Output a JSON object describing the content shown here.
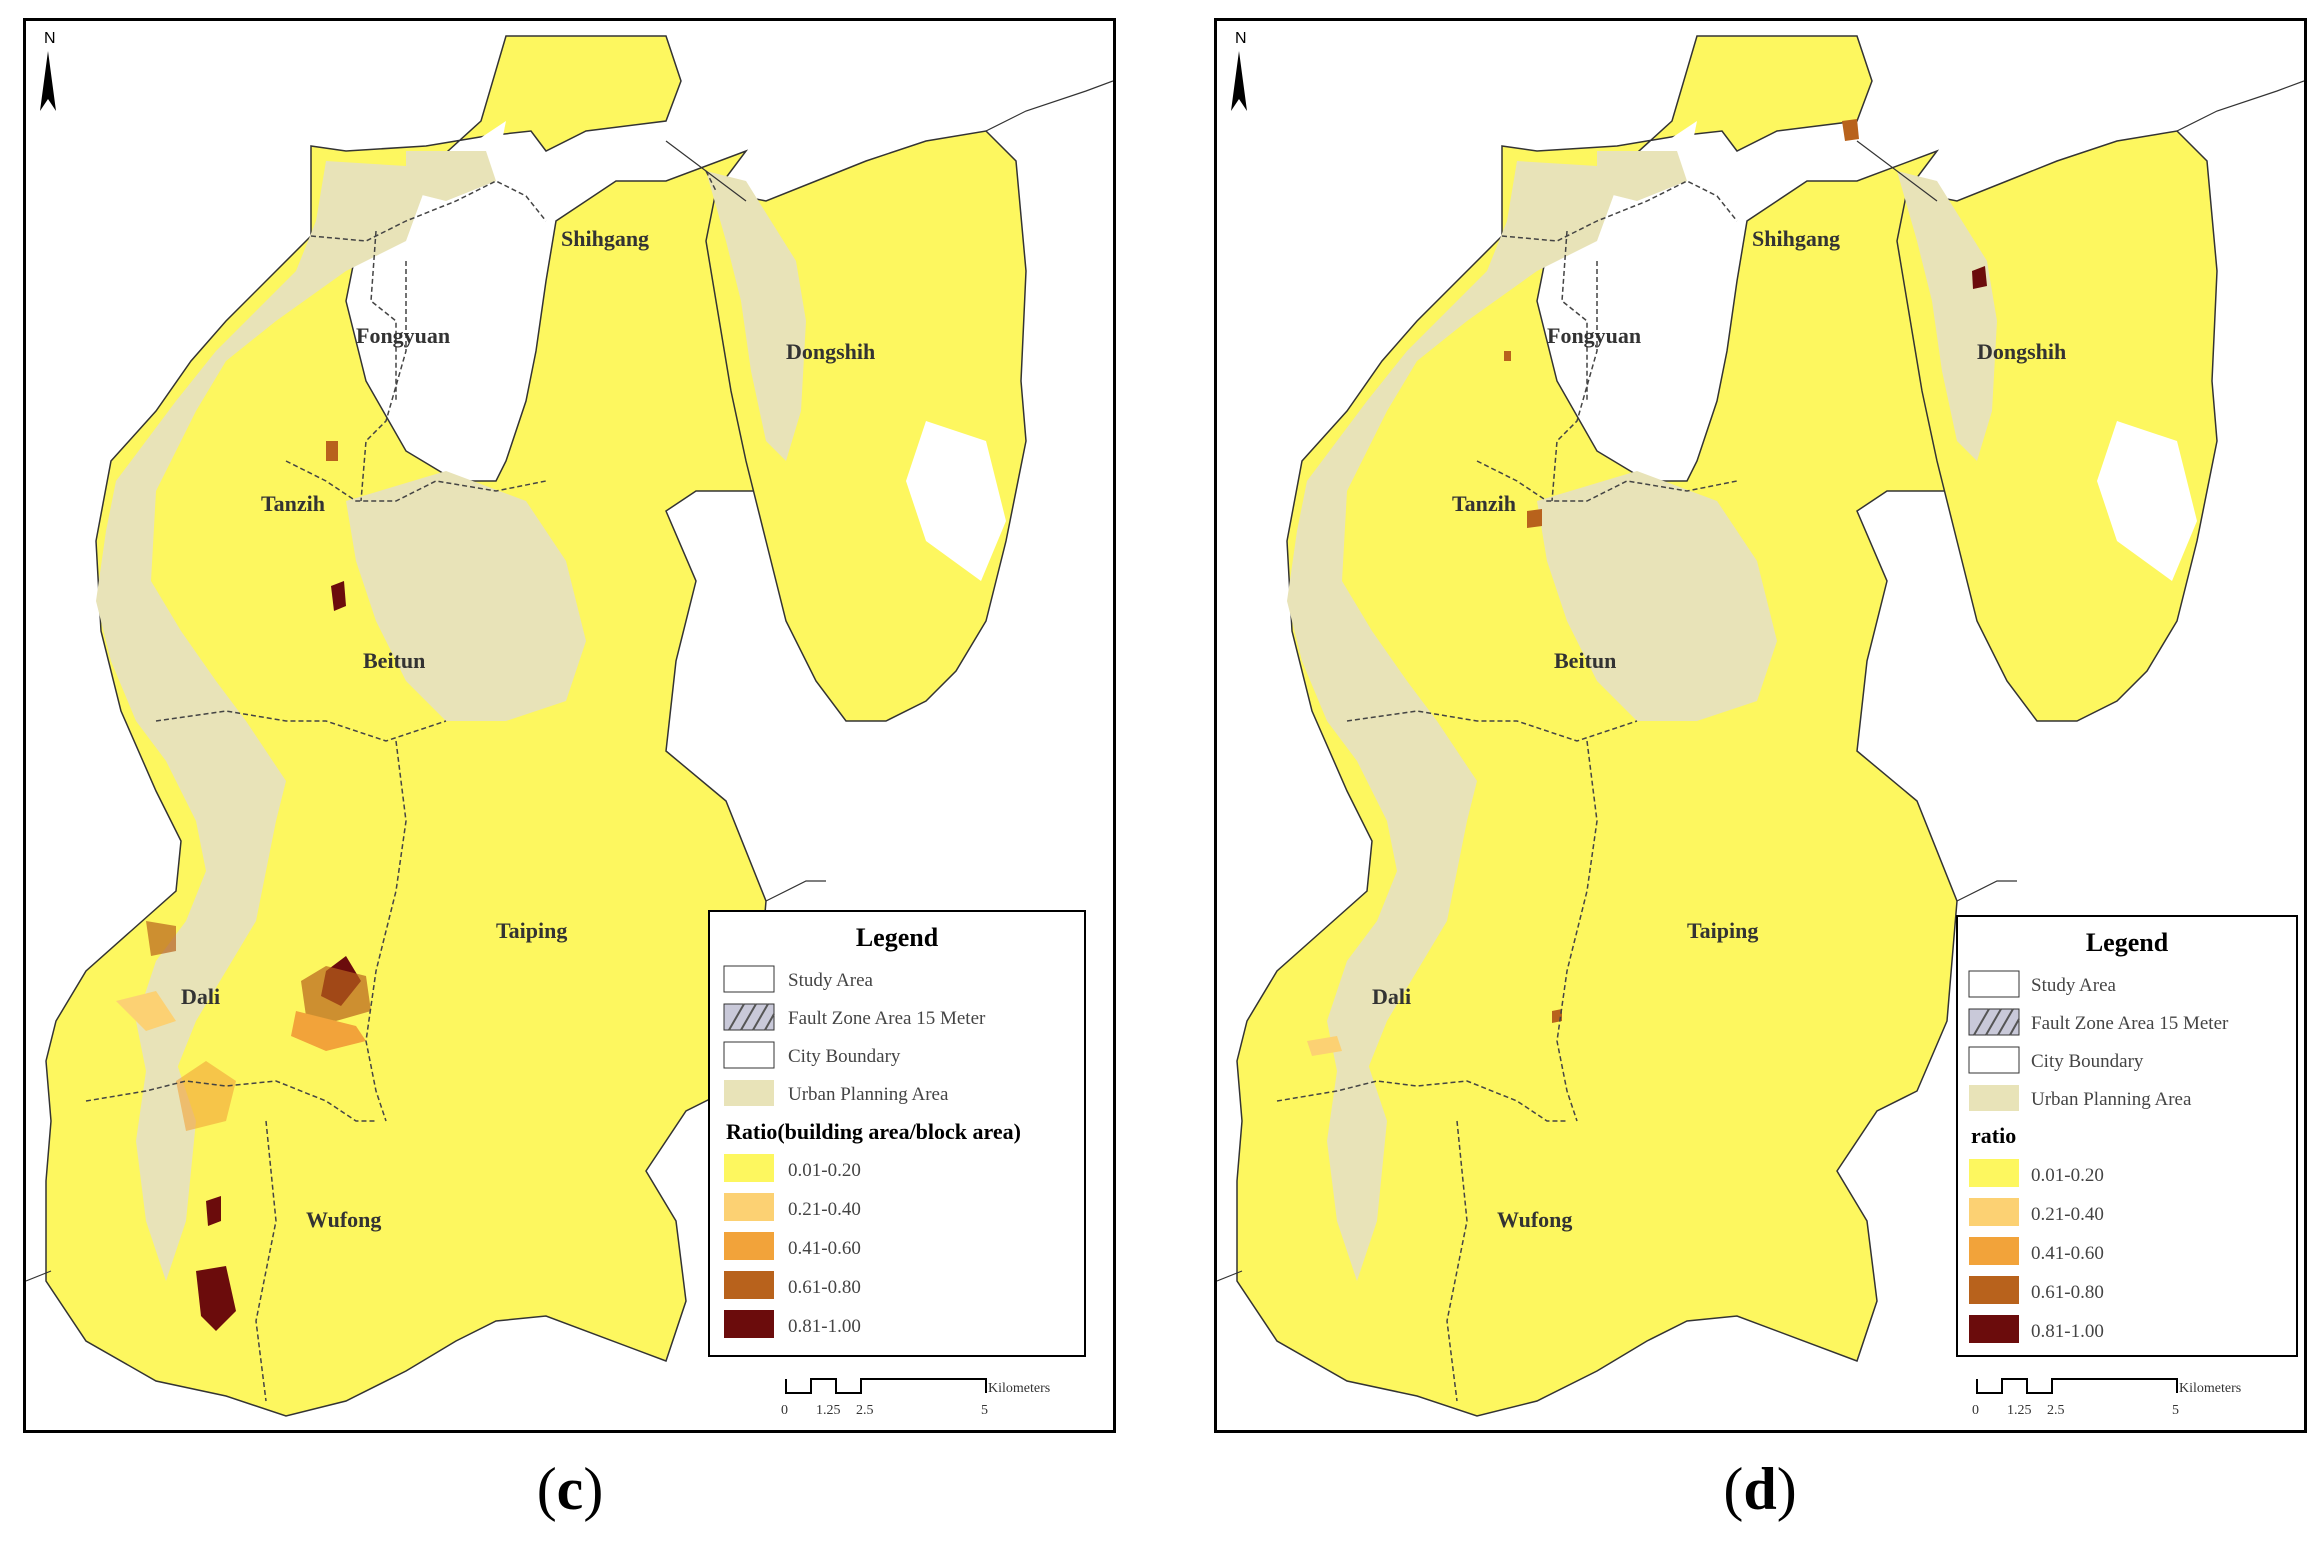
{
  "panels": [
    {
      "id": "c",
      "caption_label": "c",
      "north_label": "N",
      "districts": [
        "Shihgang",
        "Dongshih",
        "Fongyuan",
        "Tanzih",
        "Beitun",
        "Taiping",
        "Dali",
        "Wufong"
      ],
      "legend": {
        "title": "Legend",
        "items": [
          "Study Area",
          "Fault Zone Area 15 Meter",
          "City Boundary",
          "Urban Planning Area"
        ],
        "ratio_title": "Ratio(building area/block area)",
        "classes": [
          "0.01-0.20",
          "0.21-0.40",
          "0.41-0.60",
          "0.61-0.80",
          "0.81-1.00"
        ]
      },
      "scalebar": {
        "ticks": [
          "0",
          "1.25",
          "2.5",
          "5"
        ],
        "unit": "Kilometers"
      }
    },
    {
      "id": "d",
      "caption_label": "d",
      "north_label": "N",
      "districts": [
        "Shihgang",
        "Dongshih",
        "Fongyuan",
        "Tanzih",
        "Beitun",
        "Taiping",
        "Dali",
        "Wufong"
      ],
      "legend": {
        "title": "Legend",
        "items": [
          "Study Area",
          "Fault Zone Area 15 Meter",
          "City Boundary",
          "Urban Planning Area"
        ],
        "ratio_title": "ratio",
        "classes": [
          "0.01-0.20",
          "0.21-0.40",
          "0.41-0.60",
          "0.61-0.80",
          "0.81-1.00"
        ]
      },
      "scalebar": {
        "ticks": [
          "0",
          "1.25",
          "2.5",
          "5"
        ],
        "unit": "Kilometers"
      }
    }
  ],
  "colors": {
    "class_colors": [
      "#fdf75f",
      "#fcd173",
      "#f2a33a",
      "#b8621c",
      "#6b0c0c"
    ],
    "urban_planning": "#e8e3b8",
    "boundary": "#555555",
    "frame": "#000000"
  }
}
